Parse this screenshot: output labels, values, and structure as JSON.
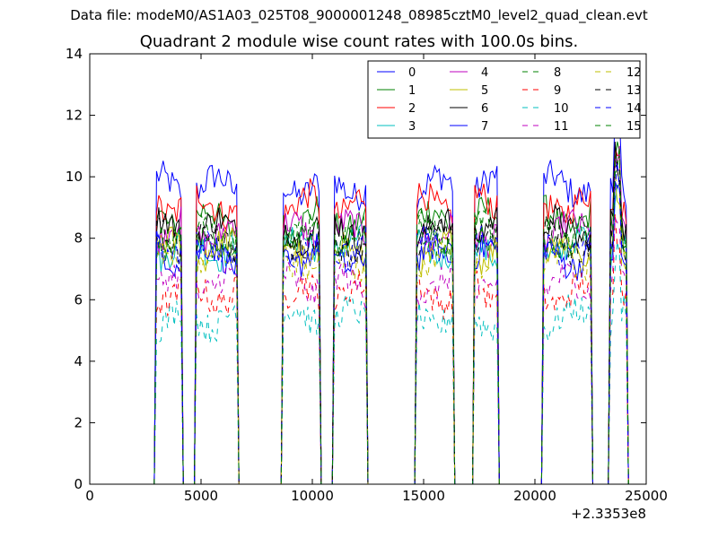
{
  "header": {
    "filename": "Data file: modeM0/AS1A03_025T08_9000001248_08985cztM0_level2_quad_clean.evt",
    "title": "Quadrant 2 module wise count rates with 100.0s bins."
  },
  "chart_data": {
    "type": "line",
    "title": "Quadrant 2 module wise count rates with 100.0s bins.",
    "xlabel": "",
    "ylabel": "",
    "xlim": [
      0,
      25000
    ],
    "ylim": [
      0,
      14
    ],
    "x_offset_label": "+2.3353e8",
    "xticks": [
      0,
      5000,
      10000,
      15000,
      20000,
      25000
    ],
    "yticks": [
      0,
      2,
      4,
      6,
      8,
      10,
      12,
      14
    ],
    "grid": false,
    "legend_position": "top-right",
    "legend_columns": 4,
    "series": [
      {
        "name": "0",
        "color": "#0000ff",
        "dash": "solid",
        "level": 9.7
      },
      {
        "name": "1",
        "color": "#008000",
        "dash": "solid",
        "level": 8.6
      },
      {
        "name": "2",
        "color": "#ff0000",
        "dash": "solid",
        "level": 9.1
      },
      {
        "name": "3",
        "color": "#00bfbf",
        "dash": "solid",
        "level": 7.7
      },
      {
        "name": "4",
        "color": "#bf00bf",
        "dash": "solid",
        "level": 8.2
      },
      {
        "name": "5",
        "color": "#bfbf00",
        "dash": "solid",
        "level": 7.6
      },
      {
        "name": "6",
        "color": "#000000",
        "dash": "solid",
        "level": 8.3
      },
      {
        "name": "7",
        "color": "#0000ff",
        "dash": "solid",
        "level": 7.4
      },
      {
        "name": "8",
        "color": "#008000",
        "dash": "dashed",
        "level": 8.1
      },
      {
        "name": "9",
        "color": "#ff0000",
        "dash": "dashed",
        "level": 6.2
      },
      {
        "name": "10",
        "color": "#00bfbf",
        "dash": "dashed",
        "level": 5.4
      },
      {
        "name": "11",
        "color": "#bf00bf",
        "dash": "dashed",
        "level": 6.5
      },
      {
        "name": "12",
        "color": "#bfbf00",
        "dash": "dashed",
        "level": 7.3
      },
      {
        "name": "13",
        "color": "#000000",
        "dash": "dashed",
        "level": 7.9
      },
      {
        "name": "14",
        "color": "#0000ff",
        "dash": "dashed",
        "level": 7.7
      },
      {
        "name": "15",
        "color": "#008000",
        "dash": "dashed",
        "level": 8.0
      }
    ],
    "active_intervals": [
      [
        3000,
        4100
      ],
      [
        4800,
        6600
      ],
      [
        8700,
        10300
      ],
      [
        11000,
        12400
      ],
      [
        14700,
        16300
      ],
      [
        17300,
        18300
      ],
      [
        20400,
        22500
      ],
      [
        23400,
        24100
      ]
    ]
  }
}
